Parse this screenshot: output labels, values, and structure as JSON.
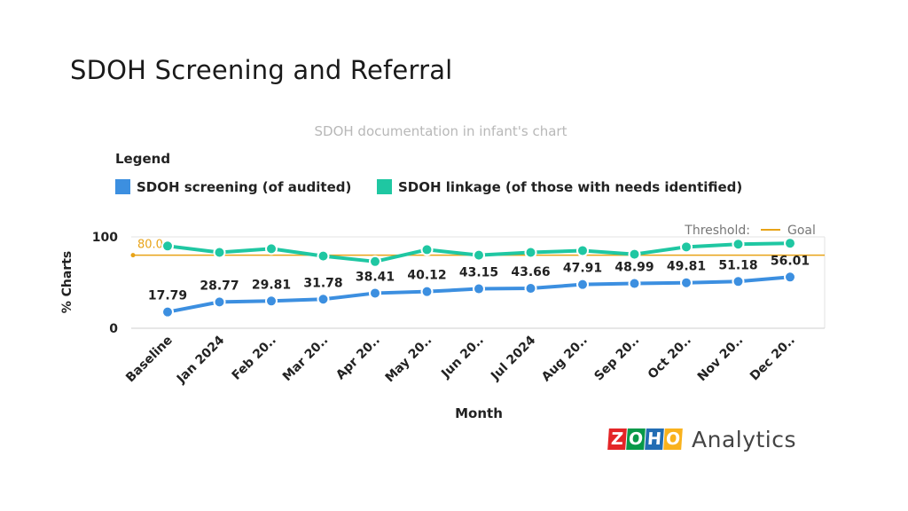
{
  "slide": {
    "title": "SDOH Screening and Referral"
  },
  "chart_data": {
    "type": "line",
    "title": "SDOH documentation in infant's chart",
    "legend_title": "Legend",
    "xlabel": "Month",
    "ylabel": "% Charts",
    "ylim": [
      0,
      100
    ],
    "yticks": [
      0,
      100
    ],
    "grid": false,
    "legend_position": "top-left",
    "categories": [
      "Baseline",
      "Jan 2024",
      "Feb 20..",
      "Mar 20..",
      "Apr 20..",
      "May 20..",
      "Jun 20..",
      "Jul 2024",
      "Aug 20..",
      "Sep 20..",
      "Oct 20..",
      "Nov 20..",
      "Dec 20.."
    ],
    "series": [
      {
        "name": "SDOH screening (of audited)",
        "color": "#3c8fe0",
        "values": [
          17.79,
          28.77,
          29.81,
          31.78,
          38.41,
          40.12,
          43.15,
          43.66,
          47.91,
          48.99,
          49.81,
          51.18,
          56.01
        ],
        "labels": [
          "17.79",
          "28.77",
          "29.81",
          "31.78",
          "38.41",
          "40.12",
          "43.15",
          "43.66",
          "47.91",
          "48.99",
          "49.81",
          "51.18",
          "56.01"
        ]
      },
      {
        "name": "SDOH linkage (of those with needs identified)",
        "color": "#1fc7a2",
        "values": [
          90,
          83,
          87,
          79,
          73,
          86,
          80,
          83,
          85,
          81,
          89,
          92,
          93
        ]
      }
    ],
    "threshold": {
      "label": "Threshold:",
      "name": "Goal",
      "value": 80,
      "value_label": "80.0",
      "color": "#e8a317"
    }
  },
  "logo": {
    "letters": [
      "Z",
      "O",
      "H",
      "O"
    ],
    "colors": [
      "#e42527",
      "#089949",
      "#226db4",
      "#f9b21d"
    ],
    "text": "Analytics"
  }
}
